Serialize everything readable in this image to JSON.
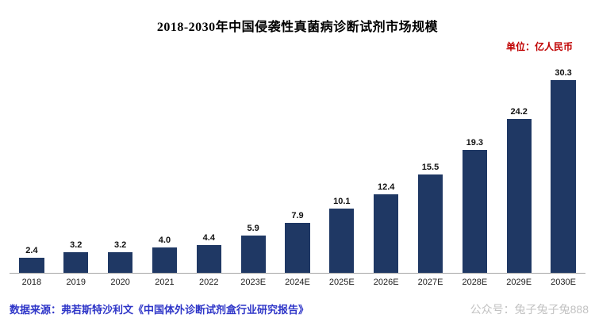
{
  "title": "2018-2030年中国侵袭性真菌病诊断试剂市场规模",
  "unit_label": "单位：亿人民币",
  "source_text": "数据来源：弗若斯特沙利文《中国体外诊断试剂盒行业研究报告》",
  "watermark": "公众号：兔子兔子兔888",
  "colors": {
    "bar": "#1f3864",
    "unit": "#c00000",
    "source": "#2f36c8",
    "watermark": "#c2c2c2",
    "axis_line": "#a6a6a6"
  },
  "chart_data": {
    "type": "bar",
    "title": "2018-2030年中国侵袭性真菌病诊断试剂市场规模",
    "unit": "亿人民币",
    "categories": [
      "2018",
      "2019",
      "2020",
      "2021",
      "2022",
      "2023E",
      "2024E",
      "2025E",
      "2026E",
      "2027E",
      "2028E",
      "2029E",
      "2030E"
    ],
    "values": [
      2.4,
      3.2,
      3.2,
      4.0,
      4.4,
      5.9,
      7.9,
      10.1,
      12.4,
      15.5,
      19.3,
      24.2,
      30.3
    ],
    "xlabel": "",
    "ylabel": "",
    "ylim": [
      0,
      32
    ],
    "grid": false,
    "legend": "none",
    "data_labels": true
  }
}
